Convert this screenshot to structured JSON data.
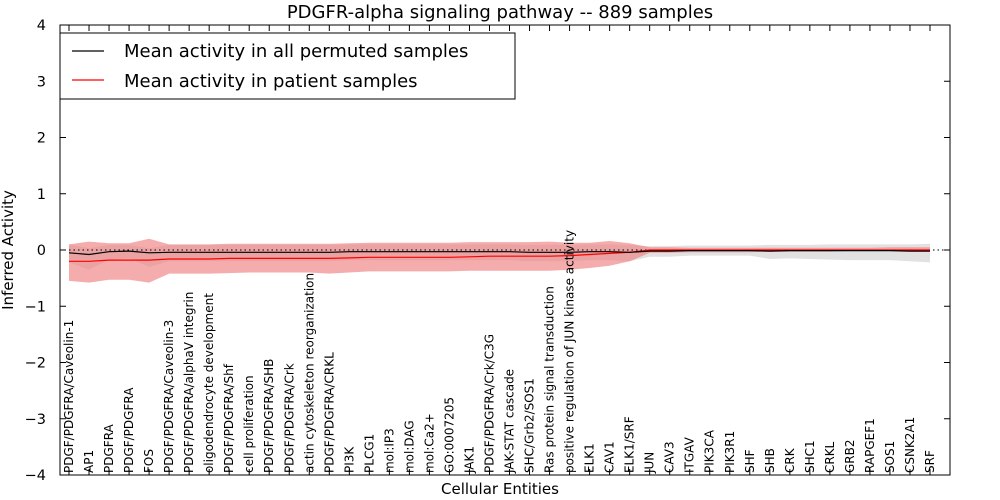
{
  "chart_data": {
    "type": "line",
    "title": "PDGFR-alpha signaling pathway -- 889 samples",
    "xlabel": "Cellular Entities",
    "ylabel": "Inferred Activity",
    "ylim": [
      -4,
      4
    ],
    "yticks": [
      -4,
      -3,
      -2,
      -1,
      0,
      1,
      2,
      3,
      4
    ],
    "ytick_labels": [
      "−4",
      "−3",
      "−2",
      "−1",
      "0",
      "1",
      "2",
      "3",
      "4"
    ],
    "reference_line": 0,
    "legend_position": "top-left",
    "categories": [
      "PDGF/PDGFRA/Caveolin-1",
      "AP1",
      "PDGFRA",
      "PDGF/PDGFRA",
      "FOS",
      "PDGF/PDGFRA/Caveolin-3",
      "PDGF/PDGFRA/alphaV integrin",
      "oligodendrocyte development",
      "PDGF/PDGFRA/Shf",
      "cell proliferation",
      "PDGF/PDGFRA/SHB",
      "PDGF/PDGFRA/Crk",
      "actin cytoskeleton reorganization",
      "PDGF/PDGFRA/CRKL",
      "PI3K",
      "PLCG1",
      "mol:IP3",
      "mol:DAG",
      "mol:Ca2+",
      "GO:0007205",
      "JAK1",
      "PDGF/PDGFRA/Crk/C3G",
      "JAK-STAT cascade",
      "SHC/Grb2/SOS1",
      "Ras protein signal transduction",
      "positive regulation of JUN kinase activity",
      "ELK1",
      "CAV1",
      "ELK1/SRF",
      "JUN",
      "CAV3",
      "ITGAV",
      "PIK3CA",
      "PIK3R1",
      "SHF",
      "SHB",
      "CRK",
      "SHC1",
      "CRKL",
      "GRB2",
      "RAPGEF1",
      "SOS1",
      "CSNK2A1",
      "SRF"
    ],
    "series": [
      {
        "name": "Mean activity in all permuted samples",
        "color": "#000000",
        "band_color": "#c8c8c8",
        "values": [
          -0.05,
          -0.08,
          -0.03,
          -0.02,
          -0.05,
          -0.04,
          -0.04,
          -0.04,
          -0.04,
          -0.04,
          -0.04,
          -0.04,
          -0.04,
          -0.04,
          -0.03,
          -0.03,
          -0.03,
          -0.03,
          -0.03,
          -0.03,
          -0.03,
          -0.03,
          -0.03,
          -0.04,
          -0.04,
          -0.04,
          -0.03,
          -0.03,
          -0.04,
          -0.02,
          -0.02,
          -0.01,
          -0.01,
          -0.01,
          -0.01,
          -0.02,
          -0.01,
          -0.01,
          -0.01,
          -0.01,
          -0.01,
          -0.01,
          -0.02,
          -0.02
        ],
        "lower": [
          -0.22,
          -0.35,
          -0.17,
          -0.15,
          -0.3,
          -0.2,
          -0.2,
          -0.2,
          -0.2,
          -0.2,
          -0.2,
          -0.2,
          -0.2,
          -0.2,
          -0.18,
          -0.18,
          -0.18,
          -0.18,
          -0.18,
          -0.18,
          -0.18,
          -0.18,
          -0.18,
          -0.2,
          -0.2,
          -0.2,
          -0.18,
          -0.18,
          -0.2,
          -0.12,
          -0.12,
          -0.1,
          -0.1,
          -0.1,
          -0.1,
          -0.16,
          -0.15,
          -0.16,
          -0.17,
          -0.18,
          -0.18,
          -0.18,
          -0.2,
          -0.22
        ],
        "upper": [
          0.1,
          0.03,
          0.09,
          0.09,
          0.03,
          0.09,
          0.09,
          0.09,
          0.09,
          0.09,
          0.09,
          0.09,
          0.09,
          0.09,
          0.1,
          0.1,
          0.1,
          0.1,
          0.1,
          0.1,
          0.1,
          0.1,
          0.1,
          0.09,
          0.09,
          0.09,
          0.1,
          0.1,
          0.09,
          0.07,
          0.07,
          0.08,
          0.08,
          0.08,
          0.08,
          0.09,
          0.09,
          0.09,
          0.1,
          0.1,
          0.1,
          0.1,
          0.1,
          0.11
        ]
      },
      {
        "name": "Mean activity in patient samples",
        "color": "#ff0000",
        "band_color": "#f08080",
        "values": [
          -0.2,
          -0.2,
          -0.18,
          -0.18,
          -0.18,
          -0.16,
          -0.16,
          -0.16,
          -0.15,
          -0.15,
          -0.15,
          -0.15,
          -0.15,
          -0.15,
          -0.14,
          -0.13,
          -0.13,
          -0.13,
          -0.13,
          -0.13,
          -0.12,
          -0.11,
          -0.11,
          -0.11,
          -0.11,
          -0.1,
          -0.08,
          -0.06,
          -0.04,
          0.0,
          0.0,
          0.0,
          0.0,
          0.0,
          0.0,
          0.0,
          0.0,
          0.0,
          0.0,
          0.0,
          0.0,
          0.0,
          0.0,
          0.0
        ],
        "lower": [
          -0.55,
          -0.58,
          -0.53,
          -0.53,
          -0.58,
          -0.42,
          -0.42,
          -0.42,
          -0.41,
          -0.4,
          -0.4,
          -0.4,
          -0.4,
          -0.42,
          -0.4,
          -0.38,
          -0.38,
          -0.38,
          -0.38,
          -0.38,
          -0.37,
          -0.37,
          -0.37,
          -0.37,
          -0.37,
          -0.35,
          -0.32,
          -0.28,
          -0.2,
          -0.05,
          -0.05,
          -0.04,
          -0.04,
          -0.04,
          -0.04,
          -0.03,
          -0.03,
          -0.03,
          -0.03,
          -0.02,
          -0.02,
          -0.02,
          -0.02,
          -0.02
        ],
        "upper": [
          0.1,
          0.15,
          0.12,
          0.12,
          0.2,
          0.1,
          0.1,
          0.1,
          0.11,
          0.11,
          0.11,
          0.11,
          0.11,
          0.11,
          0.12,
          0.13,
          0.13,
          0.13,
          0.13,
          0.13,
          0.14,
          0.14,
          0.14,
          0.14,
          0.15,
          0.13,
          0.13,
          0.16,
          0.12,
          0.05,
          0.05,
          0.04,
          0.04,
          0.04,
          0.04,
          0.04,
          0.04,
          0.04,
          0.04,
          0.04,
          0.04,
          0.05,
          0.05,
          0.05
        ]
      }
    ]
  }
}
